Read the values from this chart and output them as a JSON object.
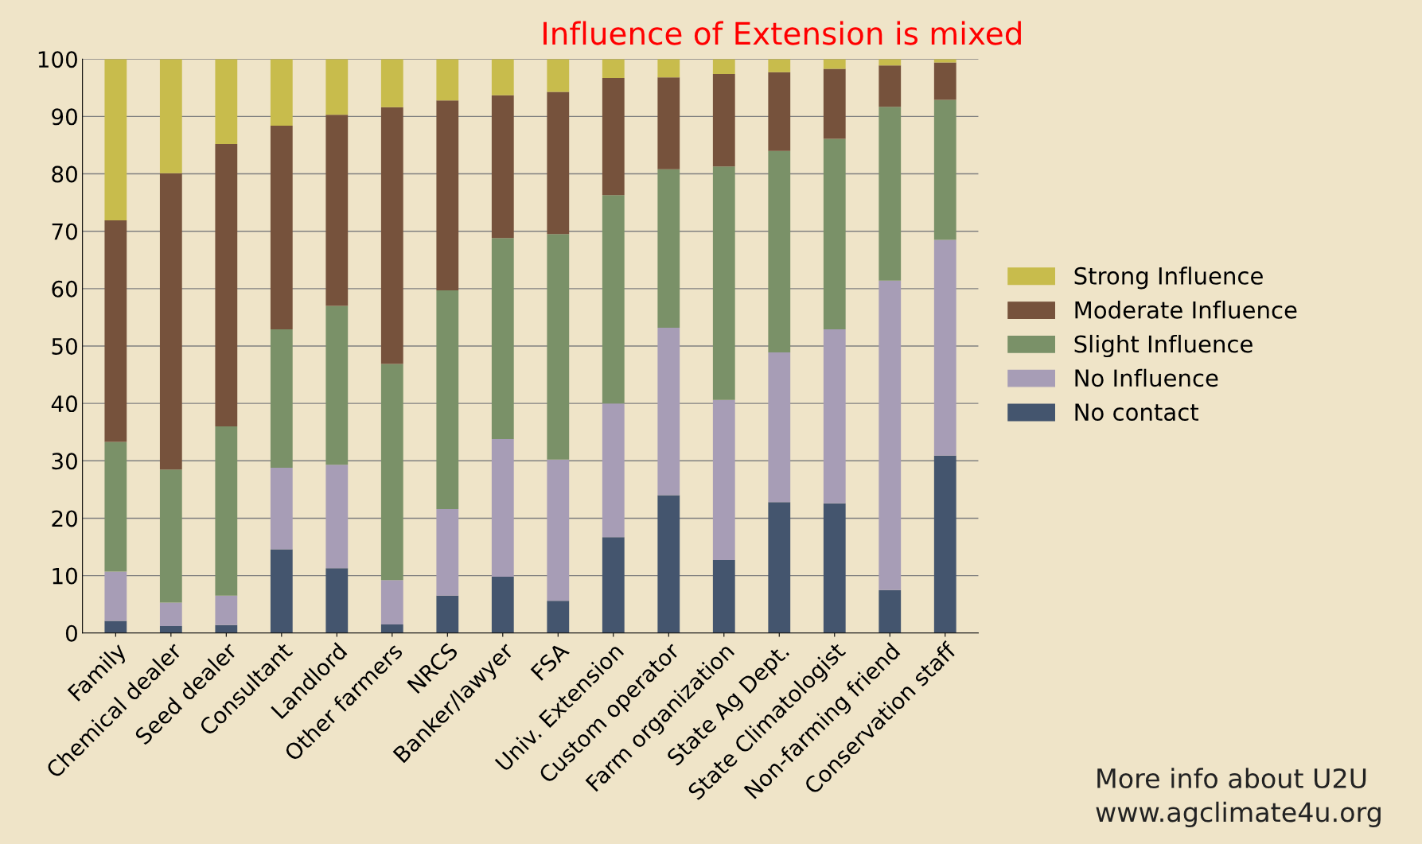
{
  "chart_data": {
    "type": "bar",
    "stacked": true,
    "title": "Influence of Extension is mixed",
    "categories": [
      "Family",
      "Chemical dealer",
      "Seed dealer",
      "Consultant",
      "Landlord",
      "Other farmers",
      "NRCS",
      "Banker/lawyer",
      "FSA",
      "Univ. Extension",
      "Custom operator",
      "Farm organization",
      "State Ag Dept.",
      "State Climatologist",
      "Non-farming friend",
      "Conservation staff"
    ],
    "series": [
      {
        "name": "No contact",
        "color": "#44556e",
        "values": [
          2.1,
          1.2,
          1.4,
          14.6,
          11.3,
          1.5,
          6.5,
          9.8,
          5.6,
          16.7,
          24.0,
          12.7,
          22.8,
          22.6,
          7.5,
          30.9
        ]
      },
      {
        "name": "No Influence",
        "color": "#a79db6",
        "values": [
          8.6,
          4.1,
          5.1,
          14.2,
          18.0,
          7.7,
          15.1,
          24.0,
          24.6,
          23.3,
          29.2,
          27.9,
          26.1,
          30.3,
          53.9,
          37.6
        ]
      },
      {
        "name": "Slight Influence",
        "color": "#7a9168",
        "values": [
          22.6,
          23.2,
          29.5,
          24.1,
          27.7,
          37.7,
          38.1,
          35.0,
          39.3,
          36.3,
          27.6,
          40.7,
          35.1,
          33.2,
          30.3,
          24.4
        ]
      },
      {
        "name": "Moderate Influence",
        "color": "#76523c",
        "values": [
          38.6,
          51.6,
          49.2,
          35.5,
          33.3,
          44.7,
          33.1,
          24.9,
          24.8,
          20.4,
          16.0,
          16.1,
          13.7,
          12.2,
          7.2,
          6.5
        ]
      },
      {
        "name": "Strong Influence",
        "color": "#c8bc4c",
        "values": [
          28.1,
          19.9,
          14.8,
          11.6,
          9.7,
          8.4,
          7.2,
          6.3,
          5.7,
          3.3,
          3.2,
          2.6,
          2.3,
          1.7,
          1.1,
          0.6
        ]
      }
    ],
    "ylim": [
      0,
      100
    ],
    "yticks": [
      0,
      10,
      20,
      30,
      40,
      50,
      60,
      70,
      80,
      90,
      100
    ],
    "grid": "y",
    "legend": "right",
    "annotations": [
      "More info about U2U",
      "www.agclimate4u.org"
    ]
  }
}
